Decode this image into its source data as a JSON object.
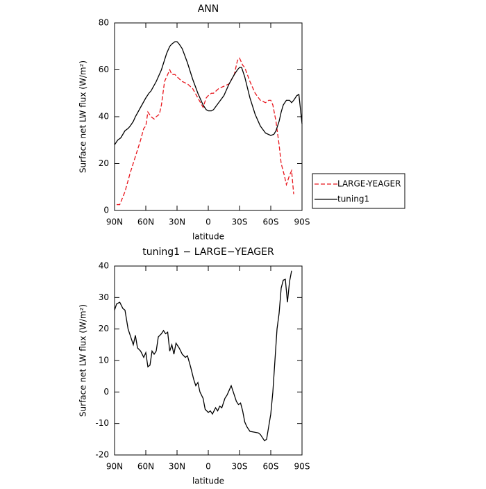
{
  "chart_data": [
    {
      "type": "line",
      "title": "ANN",
      "x_label": "latitude",
      "y_label": "Surface net LW flux (W/m²)",
      "xlim": [
        90,
        -90
      ],
      "ylim": [
        0,
        80
      ],
      "xticks": [
        {
          "value": 90,
          "label": "90N"
        },
        {
          "value": 60,
          "label": "60N"
        },
        {
          "value": 30,
          "label": "30N"
        },
        0,
        {
          "value": -30,
          "label": "30S"
        },
        {
          "value": -60,
          "label": "60S"
        },
        {
          "value": -90,
          "label": "90S"
        }
      ],
      "yticks": [
        0,
        20,
        40,
        60,
        80
      ],
      "legend": "right",
      "series": [
        {
          "name": "LARGE-YEAGER",
          "color": "#e8141b",
          "dashed": true,
          "x": [
            88,
            85,
            80,
            75,
            70,
            65,
            62,
            60,
            58,
            55,
            52,
            50,
            47,
            45,
            42,
            40,
            37,
            35,
            32,
            30,
            25,
            20,
            15,
            10,
            5,
            2,
            0,
            -3,
            -5,
            -10,
            -15,
            -20,
            -25,
            -28,
            -30,
            -33,
            -35,
            -40,
            -45,
            -50,
            -55,
            -58,
            -60,
            -62,
            -65,
            -68,
            -70,
            -73,
            -75,
            -78,
            -80,
            -82
          ],
          "values": [
            2.5,
            2.5,
            8,
            16,
            23,
            30,
            35,
            36,
            42,
            40,
            39,
            40,
            41,
            45,
            55,
            57,
            60,
            58,
            58,
            57,
            55,
            54,
            52,
            48,
            44,
            48,
            49,
            50,
            50,
            52,
            53,
            54,
            58,
            64,
            65,
            62,
            61,
            55,
            50,
            47,
            46,
            47,
            47,
            45,
            38,
            28,
            20,
            15,
            11,
            15,
            17,
            7
          ]
        },
        {
          "name": "tuning1",
          "color": "#000000",
          "dashed": false,
          "x": [
            90,
            87,
            84,
            80,
            77,
            75,
            72,
            70,
            65,
            60,
            57,
            55,
            50,
            45,
            40,
            37,
            35,
            32,
            30,
            28,
            25,
            20,
            15,
            10,
            5,
            2,
            0,
            -3,
            -5,
            -10,
            -15,
            -20,
            -25,
            -28,
            -30,
            -32,
            -35,
            -40,
            -45,
            -50,
            -55,
            -60,
            -63,
            -65,
            -68,
            -70,
            -72,
            -75,
            -78,
            -80,
            -82,
            -85,
            -87,
            -90
          ],
          "values": [
            28,
            30,
            31,
            34,
            35,
            36,
            38,
            40,
            44,
            48,
            50,
            51,
            55,
            60,
            67,
            70,
            71,
            72,
            72,
            71,
            69,
            63,
            56,
            50,
            45,
            43,
            42.5,
            42.5,
            43,
            46,
            49,
            54,
            58,
            60,
            61,
            61,
            57,
            48,
            41,
            36,
            33,
            32,
            32.5,
            34,
            38,
            42,
            45,
            47,
            47,
            46,
            47,
            49,
            49.5,
            37
          ]
        }
      ]
    },
    {
      "type": "line",
      "title": "tuning1 − LARGE−YEAGER",
      "x_label": "latitude",
      "y_label": "Surface net LW flux (W/m²)",
      "xlim": [
        90,
        -90
      ],
      "ylim": [
        -20,
        40
      ],
      "xticks": [
        {
          "value": 90,
          "label": "90N"
        },
        {
          "value": 60,
          "label": "60N"
        },
        {
          "value": 30,
          "label": "30N"
        },
        0,
        {
          "value": -30,
          "label": "30S"
        },
        {
          "value": -60,
          "label": "60S"
        },
        {
          "value": -90,
          "label": "90S"
        }
      ],
      "yticks": [
        -20,
        -10,
        0,
        10,
        20,
        30,
        40
      ],
      "series": [
        {
          "color": "#000000",
          "dashed": false,
          "x": [
            90,
            88,
            85,
            82,
            80,
            77,
            75,
            72,
            70,
            68,
            65,
            62,
            60,
            58,
            56,
            54,
            52,
            50,
            48,
            45,
            43,
            41,
            39,
            37,
            35,
            33,
            31,
            28,
            25,
            22,
            20,
            17,
            14,
            12,
            10,
            8,
            5,
            3,
            0,
            -2,
            -4,
            -7,
            -9,
            -11,
            -13,
            -16,
            -18,
            -20,
            -22,
            -24,
            -27,
            -29,
            -31,
            -33,
            -35,
            -37,
            -40,
            -45,
            -48,
            -50,
            -52,
            -54,
            -56,
            -58,
            -60,
            -62,
            -64,
            -66,
            -68,
            -70,
            -72,
            -74,
            -76,
            -78,
            -80
          ],
          "values": [
            26,
            28,
            28.5,
            26.5,
            26,
            20,
            18,
            15,
            18,
            14,
            13,
            11,
            12.5,
            8,
            8.5,
            13,
            12,
            13,
            17.5,
            18.5,
            19.5,
            18.5,
            19,
            13,
            15,
            12,
            15.5,
            14,
            12,
            11,
            11.5,
            8,
            4,
            2,
            3,
            0,
            -2,
            -5.5,
            -6.5,
            -6,
            -7,
            -5,
            -6,
            -4.5,
            -5,
            -2,
            -1,
            0.5,
            2,
            0,
            -3,
            -4,
            -3.5,
            -6,
            -9.5,
            -11,
            -12.5,
            -12.8,
            -13,
            -13.5,
            -14.5,
            -15.5,
            -15,
            -11,
            -7,
            0,
            10,
            20,
            25,
            33,
            35.5,
            35.8,
            28.5,
            35,
            38.5
          ]
        }
      ]
    }
  ]
}
